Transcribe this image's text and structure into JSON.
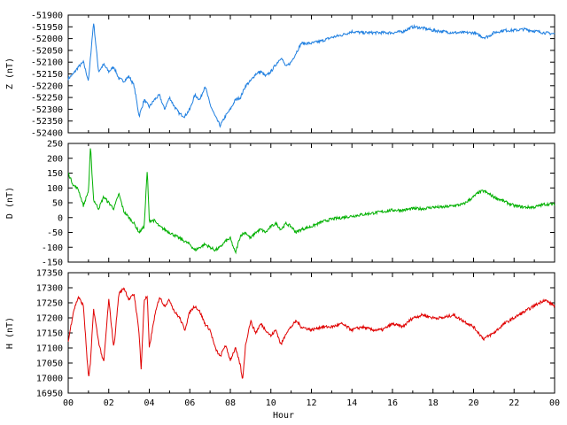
{
  "chart_data": [
    {
      "type": "line",
      "ylabel": "Z (nT)",
      "ylim": [
        -52400,
        -51900
      ],
      "yticks": [
        -51900,
        -51950,
        -52000,
        -52050,
        -52100,
        -52150,
        -52200,
        -52250,
        -52300,
        -52350,
        -52400
      ],
      "color": "#1f7fe0",
      "x": [
        0,
        0.25,
        0.5,
        0.75,
        1.0,
        1.25,
        1.5,
        1.75,
        2.0,
        2.25,
        2.5,
        2.75,
        3.0,
        3.25,
        3.5,
        3.75,
        4.0,
        4.25,
        4.5,
        4.75,
        5.0,
        5.25,
        5.5,
        5.75,
        6.0,
        6.25,
        6.5,
        6.75,
        7.0,
        7.25,
        7.5,
        7.75,
        8.0,
        8.25,
        8.5,
        8.75,
        9.0,
        9.25,
        9.5,
        9.75,
        10.0,
        10.25,
        10.5,
        10.75,
        11.0,
        11.25,
        11.5,
        11.75,
        12.0,
        12.5,
        13.0,
        13.5,
        14.0,
        14.5,
        15.0,
        15.5,
        16.0,
        16.5,
        17.0,
        17.5,
        18.0,
        18.5,
        19.0,
        19.5,
        20.0,
        20.25,
        20.5,
        20.75,
        21.0,
        21.5,
        22.0,
        22.5,
        23.0,
        23.5,
        24.0
      ],
      "values": [
        -52170,
        -52150,
        -52120,
        -52100,
        -52180,
        -51930,
        -52140,
        -52110,
        -52140,
        -52120,
        -52170,
        -52180,
        -52160,
        -52200,
        -52330,
        -52260,
        -52290,
        -52260,
        -52240,
        -52300,
        -52250,
        -52290,
        -52320,
        -52330,
        -52300,
        -52240,
        -52260,
        -52200,
        -52280,
        -52330,
        -52370,
        -52330,
        -52300,
        -52260,
        -52250,
        -52200,
        -52180,
        -52150,
        -52140,
        -52160,
        -52140,
        -52110,
        -52080,
        -52120,
        -52100,
        -52060,
        -52020,
        -52020,
        -52020,
        -52010,
        -51995,
        -51985,
        -51970,
        -51975,
        -51975,
        -51975,
        -51975,
        -51970,
        -51950,
        -51955,
        -51965,
        -51970,
        -51975,
        -51975,
        -51975,
        -51985,
        -51995,
        -51990,
        -51975,
        -51965,
        -51965,
        -51960,
        -51968,
        -51975,
        -51980
      ]
    },
    {
      "type": "line",
      "ylabel": "D (nT)",
      "ylim": [
        -150,
        250
      ],
      "yticks": [
        250,
        200,
        150,
        100,
        50,
        0,
        -50,
        -100,
        -150
      ],
      "color": "#00b000",
      "x": [
        0,
        0.25,
        0.5,
        0.75,
        1.0,
        1.1,
        1.25,
        1.5,
        1.75,
        2.0,
        2.25,
        2.5,
        2.75,
        3.0,
        3.25,
        3.5,
        3.75,
        3.9,
        4.0,
        4.25,
        4.5,
        4.75,
        5.0,
        5.25,
        5.5,
        5.75,
        6.0,
        6.25,
        6.5,
        6.75,
        7.0,
        7.25,
        7.5,
        7.75,
        8.0,
        8.25,
        8.5,
        8.75,
        9.0,
        9.25,
        9.5,
        9.75,
        10.0,
        10.25,
        10.5,
        10.75,
        11.0,
        11.25,
        11.5,
        12.0,
        12.5,
        13.0,
        13.5,
        14.0,
        14.5,
        15.0,
        15.5,
        16.0,
        16.5,
        17.0,
        17.5,
        18.0,
        18.5,
        19.0,
        19.5,
        20.0,
        20.25,
        20.5,
        20.75,
        21.0,
        21.5,
        22.0,
        22.5,
        23.0,
        23.5,
        24.0
      ],
      "values": [
        150,
        110,
        95,
        40,
        90,
        240,
        60,
        30,
        70,
        50,
        30,
        80,
        20,
        0,
        -20,
        -50,
        -30,
        160,
        -10,
        -10,
        -30,
        -40,
        -50,
        -60,
        -70,
        -80,
        -90,
        -110,
        -100,
        -90,
        -100,
        -110,
        -100,
        -80,
        -70,
        -120,
        -60,
        -50,
        -70,
        -50,
        -40,
        -50,
        -30,
        -20,
        -40,
        -20,
        -30,
        -50,
        -40,
        -30,
        -15,
        -5,
        0,
        5,
        10,
        15,
        20,
        25,
        25,
        30,
        30,
        35,
        35,
        40,
        45,
        70,
        85,
        90,
        80,
        70,
        55,
        40,
        35,
        35,
        45,
        45
      ]
    },
    {
      "type": "line",
      "ylabel": "H (nT)",
      "xlabel": "Hour",
      "ylim": [
        16950,
        17350
      ],
      "yticks": [
        17350,
        17300,
        17250,
        17200,
        17150,
        17100,
        17050,
        17000,
        16950
      ],
      "xticks": [
        "00",
        "02",
        "04",
        "06",
        "08",
        "10",
        "12",
        "14",
        "16",
        "18",
        "20",
        "22",
        "00"
      ],
      "xlim": [
        0,
        24
      ],
      "color": "#e00000",
      "x": [
        0,
        0.25,
        0.5,
        0.75,
        1.0,
        1.1,
        1.25,
        1.5,
        1.75,
        2.0,
        2.25,
        2.5,
        2.75,
        3.0,
        3.25,
        3.5,
        3.6,
        3.75,
        3.9,
        4.0,
        4.25,
        4.5,
        4.75,
        5.0,
        5.25,
        5.5,
        5.75,
        6.0,
        6.25,
        6.5,
        6.75,
        7.0,
        7.25,
        7.5,
        7.75,
        8.0,
        8.25,
        8.5,
        8.6,
        8.75,
        9.0,
        9.25,
        9.5,
        9.75,
        10.0,
        10.25,
        10.5,
        10.75,
        11.0,
        11.25,
        11.5,
        12.0,
        12.5,
        13.0,
        13.5,
        14.0,
        14.5,
        15.0,
        15.5,
        16.0,
        16.5,
        17.0,
        17.5,
        18.0,
        18.5,
        19.0,
        19.5,
        20.0,
        20.25,
        20.5,
        20.75,
        21.0,
        21.5,
        22.0,
        22.5,
        23.0,
        23.5,
        24.0
      ],
      "values": [
        17120,
        17220,
        17270,
        17240,
        17000,
        17050,
        17230,
        17120,
        17050,
        17260,
        17100,
        17280,
        17300,
        17260,
        17280,
        17150,
        17030,
        17260,
        17270,
        17100,
        17200,
        17270,
        17240,
        17260,
        17220,
        17200,
        17160,
        17220,
        17240,
        17220,
        17180,
        17160,
        17100,
        17070,
        17110,
        17060,
        17100,
        17040,
        16990,
        17110,
        17190,
        17150,
        17180,
        17160,
        17140,
        17160,
        17110,
        17150,
        17170,
        17190,
        17170,
        17160,
        17170,
        17170,
        17180,
        17160,
        17170,
        17160,
        17160,
        17180,
        17170,
        17200,
        17210,
        17200,
        17200,
        17210,
        17190,
        17170,
        17150,
        17130,
        17140,
        17150,
        17180,
        17200,
        17220,
        17240,
        17260,
        17240
      ]
    }
  ]
}
